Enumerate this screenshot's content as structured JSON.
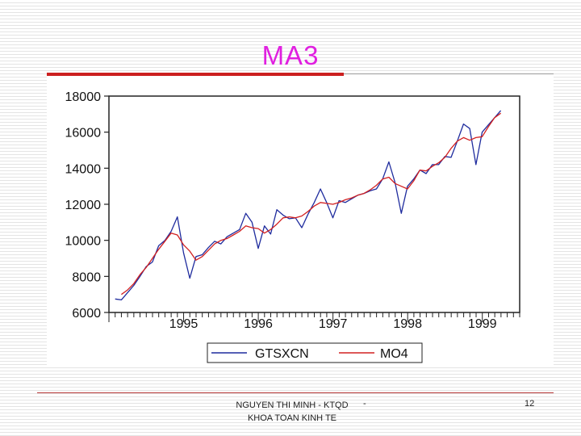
{
  "slide": {
    "title": "MA3",
    "footer": {
      "author_line1": "NGUYEN THI MINH - KTQD",
      "author_line2": "KHOA TOAN KINH TE",
      "separator": "-",
      "page_number": "12"
    }
  },
  "chart_data": {
    "type": "line",
    "title": "",
    "xlabel": "",
    "ylabel": "",
    "ylim": [
      6000,
      18000
    ],
    "yticks": [
      "18000",
      "16000",
      "14000",
      "12000",
      "10000",
      "8000",
      "6000"
    ],
    "xticks": [
      "1995",
      "1996",
      "1997",
      "1998",
      "1999"
    ],
    "x_start": 1994.583,
    "x_step": 0.0833,
    "x_end": 2000.0,
    "legend_position": "bottom",
    "grid": false,
    "series": [
      {
        "name": "GTSXCN",
        "color": "#1f2c9e",
        "values": [
          6750,
          6700,
          7100,
          7500,
          8000,
          8550,
          8800,
          9700,
          10000,
          10500,
          11300,
          9300,
          7900,
          9100,
          9200,
          9600,
          9950,
          9800,
          10200,
          10400,
          10600,
          11500,
          11000,
          9550,
          10800,
          10350,
          11700,
          11400,
          11200,
          11250,
          10700,
          11450,
          12100,
          12850,
          12100,
          11250,
          12200,
          12100,
          12300,
          12500,
          12600,
          12750,
          12850,
          13400,
          14350,
          13200,
          11500,
          13000,
          13400,
          13900,
          13700,
          14200,
          14200,
          14650,
          14600,
          15500,
          16450,
          16200,
          14200,
          16000,
          16400,
          16800,
          17200
        ]
      },
      {
        "name": "MO4",
        "color": "#d22020",
        "values": [
          null,
          7000,
          7250,
          7600,
          8100,
          8500,
          9000,
          9500,
          9950,
          10400,
          10300,
          9750,
          9400,
          8900,
          9100,
          9450,
          9800,
          10000,
          10100,
          10300,
          10500,
          10800,
          10700,
          10650,
          10400,
          10600,
          10900,
          11250,
          11300,
          11250,
          11350,
          11600,
          11900,
          12100,
          12050,
          12000,
          12100,
          12250,
          12350,
          12500,
          12600,
          12800,
          13050,
          13400,
          13500,
          13150,
          13000,
          12850,
          13300,
          13900,
          13850,
          14100,
          14300,
          14600,
          15100,
          15500,
          15700,
          15550,
          15700,
          15750,
          16300,
          16800,
          17050
        ]
      }
    ]
  }
}
